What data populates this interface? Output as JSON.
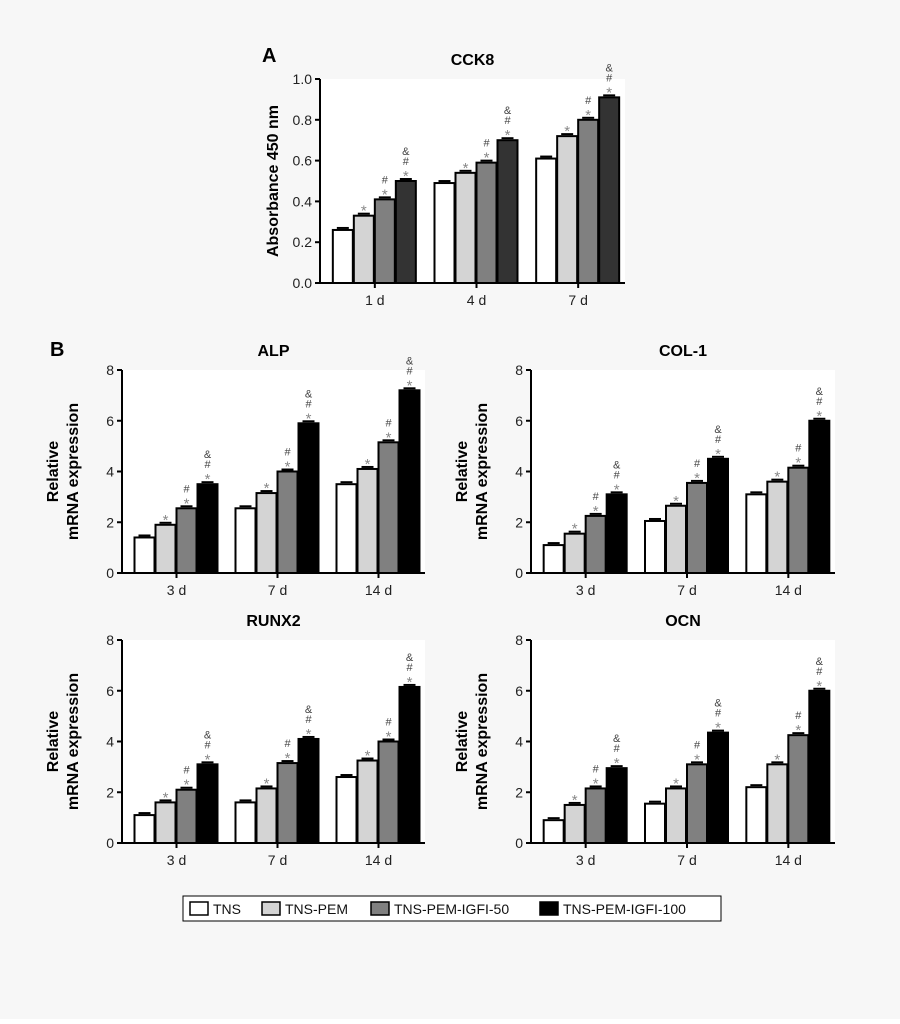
{
  "panel_letters": [
    "A",
    "B"
  ],
  "legend": {
    "entries": [
      "TNS",
      "TNS-PEM",
      "TNS-PEM-IGFI-50",
      "TNS-PEM-IGFI-100"
    ]
  },
  "colors": {
    "TNS": "#ffffff",
    "TNS-PEM": "#d4d4d4",
    "TNS-PEM-IGFI-50": "#808080",
    "TNS-PEM-IGFI-100_A": "#333333",
    "TNS-PEM-IGFI-100_B": "#000000"
  },
  "significance_marks": [
    [],
    [
      "*"
    ],
    [
      "*",
      "#"
    ],
    [
      "*",
      "#",
      "&"
    ]
  ],
  "chart_data": [
    {
      "type": "bar",
      "title": "CCK8",
      "ylabel": "Absorbance 450 nm",
      "ylim": [
        0,
        1.0
      ],
      "yticks": [
        "0.0",
        "0.2",
        "0.4",
        "0.6",
        "0.8",
        "1.0"
      ],
      "tick_values": [
        0,
        0.2,
        0.4,
        0.6,
        0.8,
        1.0
      ],
      "categories": [
        "1 d",
        "4 d",
        "7 d"
      ],
      "series": [
        {
          "name": "TNS",
          "values": [
            0.26,
            0.49,
            0.61
          ]
        },
        {
          "name": "TNS-PEM",
          "values": [
            0.33,
            0.54,
            0.72
          ]
        },
        {
          "name": "TNS-PEM-IGFI-50",
          "values": [
            0.41,
            0.59,
            0.8
          ]
        },
        {
          "name": "TNS-PEM-IGFI-100",
          "values": [
            0.5,
            0.7,
            0.91
          ]
        }
      ]
    },
    {
      "type": "bar",
      "title": "ALP",
      "ylabel": [
        "Relative",
        "mRNA expression"
      ],
      "ylim": [
        0,
        8
      ],
      "yticks": [
        "0",
        "2",
        "4",
        "6",
        "8"
      ],
      "tick_values": [
        0,
        2,
        4,
        6,
        8
      ],
      "categories": [
        "3 d",
        "7 d",
        "14 d"
      ],
      "series": [
        {
          "name": "TNS",
          "values": [
            1.4,
            2.55,
            3.5
          ]
        },
        {
          "name": "TNS-PEM",
          "values": [
            1.9,
            3.15,
            4.1
          ]
        },
        {
          "name": "TNS-PEM-IGFI-50",
          "values": [
            2.55,
            4.0,
            5.15
          ]
        },
        {
          "name": "TNS-PEM-IGFI-100",
          "values": [
            3.5,
            5.9,
            7.2
          ]
        }
      ]
    },
    {
      "type": "bar",
      "title": "COL-1",
      "ylabel": [
        "Relative",
        "mRNA expression"
      ],
      "ylim": [
        0,
        8
      ],
      "yticks": [
        "0",
        "2",
        "4",
        "6",
        "8"
      ],
      "tick_values": [
        0,
        2,
        4,
        6,
        8
      ],
      "categories": [
        "3 d",
        "7 d",
        "14 d"
      ],
      "series": [
        {
          "name": "TNS",
          "values": [
            1.1,
            2.05,
            3.1
          ]
        },
        {
          "name": "TNS-PEM",
          "values": [
            1.55,
            2.65,
            3.6
          ]
        },
        {
          "name": "TNS-PEM-IGFI-50",
          "values": [
            2.25,
            3.55,
            4.15
          ]
        },
        {
          "name": "TNS-PEM-IGFI-100",
          "values": [
            3.1,
            4.5,
            6.0
          ]
        }
      ]
    },
    {
      "type": "bar",
      "title": "RUNX2",
      "ylabel": [
        "Relative",
        "mRNA expression"
      ],
      "ylim": [
        0,
        8
      ],
      "yticks": [
        "0",
        "2",
        "4",
        "6",
        "8"
      ],
      "tick_values": [
        0,
        2,
        4,
        6,
        8
      ],
      "categories": [
        "3 d",
        "7 d",
        "14 d"
      ],
      "series": [
        {
          "name": "TNS",
          "values": [
            1.1,
            1.6,
            2.6
          ]
        },
        {
          "name": "TNS-PEM",
          "values": [
            1.6,
            2.15,
            3.25
          ]
        },
        {
          "name": "TNS-PEM-IGFI-50",
          "values": [
            2.1,
            3.15,
            4.0
          ]
        },
        {
          "name": "TNS-PEM-IGFI-100",
          "values": [
            3.1,
            4.1,
            6.15
          ]
        }
      ]
    },
    {
      "type": "bar",
      "title": "OCN",
      "ylabel": [
        "Relative",
        "mRNA expression"
      ],
      "ylim": [
        0,
        8
      ],
      "yticks": [
        "0",
        "2",
        "4",
        "6",
        "8"
      ],
      "tick_values": [
        0,
        2,
        4,
        6,
        8
      ],
      "categories": [
        "3 d",
        "7 d",
        "14 d"
      ],
      "series": [
        {
          "name": "TNS",
          "values": [
            0.9,
            1.55,
            2.2
          ]
        },
        {
          "name": "TNS-PEM",
          "values": [
            1.5,
            2.15,
            3.1
          ]
        },
        {
          "name": "TNS-PEM-IGFI-50",
          "values": [
            2.15,
            3.1,
            4.25
          ]
        },
        {
          "name": "TNS-PEM-IGFI-100",
          "values": [
            2.95,
            4.35,
            6.0
          ]
        }
      ]
    }
  ]
}
